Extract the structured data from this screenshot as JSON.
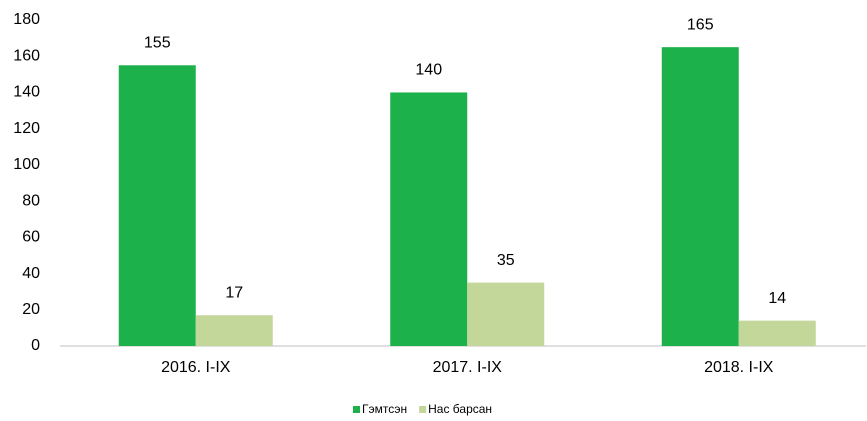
{
  "chart_data": {
    "type": "bar",
    "categories": [
      "2016. I-IX",
      "2017. I-IX",
      "2018. I-IX"
    ],
    "series": [
      {
        "name": "Гэмтсэн",
        "color": "#1db14b",
        "values": [
          155,
          140,
          165
        ]
      },
      {
        "name": "Нас барсан",
        "color": "#c4d79b",
        "values": [
          17,
          35,
          14
        ]
      }
    ],
    "ylim": [
      0,
      180
    ],
    "yticks": [
      0,
      20,
      40,
      60,
      80,
      100,
      120,
      140,
      160,
      180
    ],
    "legend": "bottom"
  }
}
